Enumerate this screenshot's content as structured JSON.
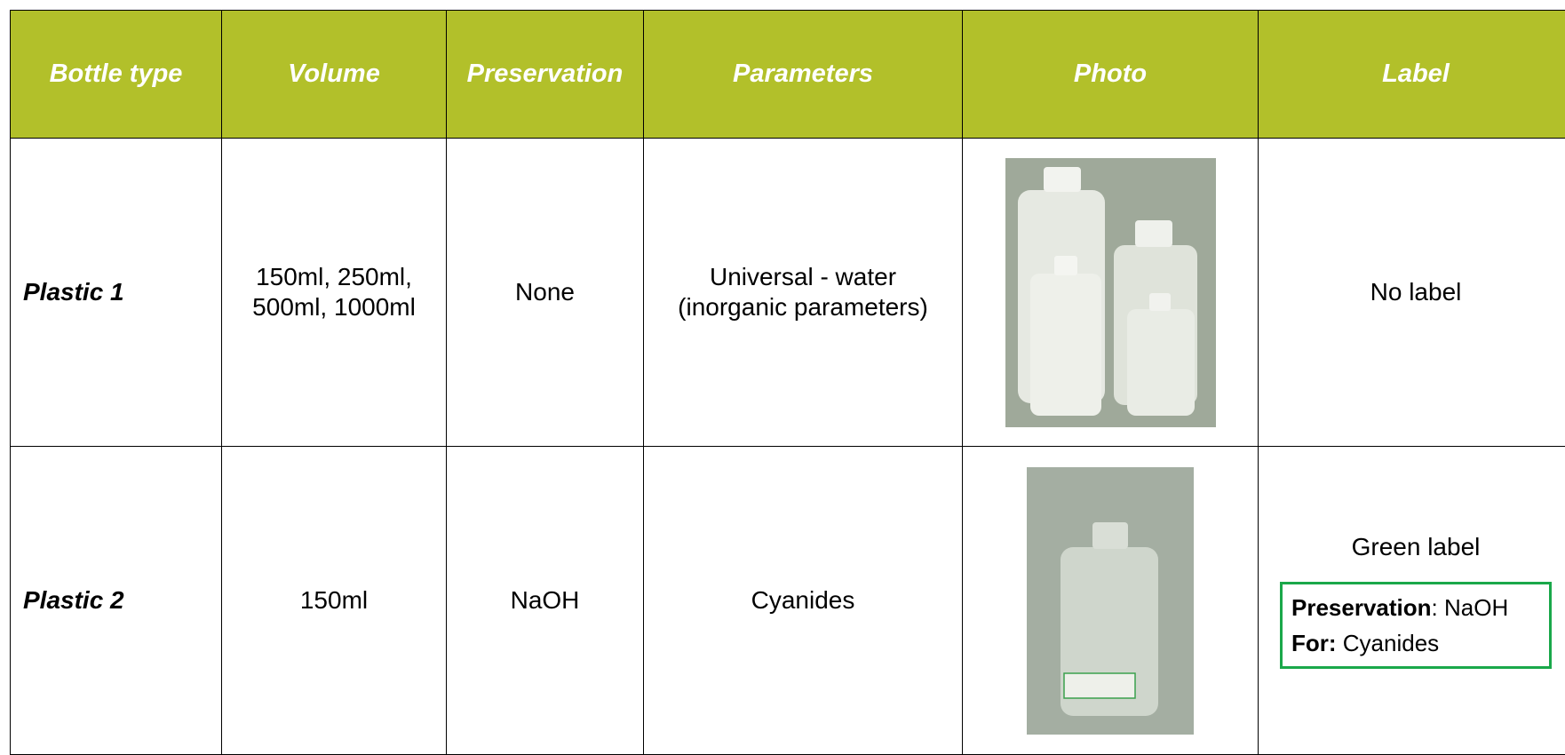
{
  "table": {
    "header": [
      "Bottle type",
      "Volume",
      "Preservation",
      "Parameters",
      "Photo",
      "Label"
    ],
    "rows": [
      {
        "bottle_type": "Plastic 1",
        "volume": [
          "150ml, 250ml,",
          "500ml, 1000ml"
        ],
        "preservation": "None",
        "parameters": [
          "Universal - water",
          "(inorganic parameters)"
        ],
        "label": "No label"
      },
      {
        "bottle_type": "Plastic 2",
        "volume": [
          "150ml"
        ],
        "preservation": "NaOH",
        "parameters": [
          "Cyanides"
        ],
        "label": "Green label",
        "label_box": [
          {
            "key": "Preservation",
            "value": ": NaOH"
          },
          {
            "key": "For:",
            "value": "Cyanides"
          }
        ]
      }
    ]
  }
}
